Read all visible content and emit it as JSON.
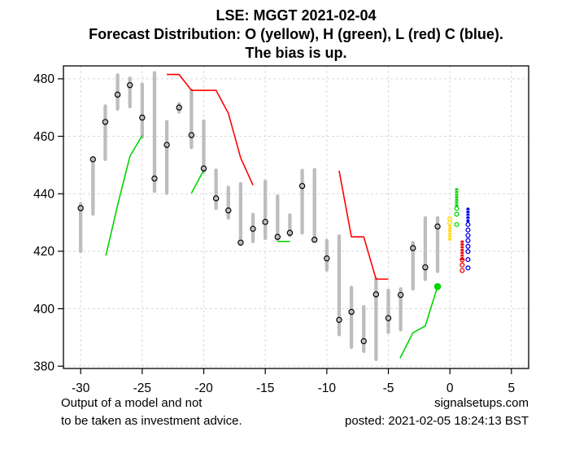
{
  "title": {
    "line1": "LSE: MGGT 2021-02-04",
    "line2": "Forecast Distribution: O (yellow), H (green), L (red) C (blue).",
    "line3": "The bias is up."
  },
  "footer": {
    "disclaimer_line1": "Output of a model and not",
    "disclaimer_line2": "to be taken as investment advice.",
    "site": "signalsetups.com",
    "posted": "posted: 2021-02-05 18:24:13 BST"
  },
  "chart_data": {
    "type": "ohlc-forecast",
    "title": "LSE: MGGT 2021-02-04",
    "xlabel": "",
    "ylabel": "",
    "xlim": [
      -31.4,
      6.4
    ],
    "ylim": [
      379.2,
      484.5
    ],
    "x_ticks": [
      -30,
      -25,
      -20,
      -15,
      -10,
      -5,
      0,
      5
    ],
    "y_ticks": [
      380,
      400,
      420,
      440,
      460,
      480
    ],
    "grid": true,
    "bars_note": "each bar = [day_offset, low, high, close]",
    "bars": [
      [
        -30,
        420.0,
        436.5,
        435.0
      ],
      [
        -29,
        433.0,
        452.5,
        452.0
      ],
      [
        -28,
        452.0,
        470.5,
        465.0
      ],
      [
        -27,
        469.5,
        481.3,
        474.5
      ],
      [
        -26,
        470.3,
        480.2,
        477.8
      ],
      [
        -25,
        459.7,
        478.1,
        466.5
      ],
      [
        -24,
        440.9,
        482.1,
        445.3
      ],
      [
        -23,
        440.2,
        465.1,
        457.0
      ],
      [
        -22,
        468.5,
        471.3,
        470.0
      ],
      [
        -21,
        456.1,
        476.0,
        460.4
      ],
      [
        -20,
        447.6,
        465.3,
        448.8
      ],
      [
        -19,
        434.9,
        448.2,
        438.4
      ],
      [
        -18,
        431.6,
        442.2,
        434.2
      ],
      [
        -17,
        422.5,
        443.5,
        423.0
      ],
      [
        -16,
        423.4,
        432.8,
        427.8
      ],
      [
        -15,
        424.5,
        444.3,
        430.2
      ],
      [
        -14,
        424.1,
        439.2,
        425.0
      ],
      [
        -13,
        425.4,
        432.6,
        426.4
      ],
      [
        -12,
        426.4,
        448.1,
        442.7
      ],
      [
        -11,
        423.6,
        448.4,
        424.0
      ],
      [
        -10,
        413.5,
        423.7,
        417.5
      ],
      [
        -9,
        391.0,
        425.3,
        396.1
      ],
      [
        -8,
        386.6,
        407.4,
        398.9
      ],
      [
        -7,
        385.2,
        400.7,
        388.7
      ],
      [
        -6,
        382.4,
        410.4,
        405.0
      ],
      [
        -5,
        391.8,
        406.4,
        396.7
      ],
      [
        -4,
        392.7,
        406.9,
        404.8
      ],
      [
        -3,
        406.9,
        423.0,
        421.1
      ],
      [
        -2,
        410.2,
        431.6,
        414.4
      ],
      [
        -1,
        413.0,
        431.6,
        428.6
      ]
    ],
    "green_line_segments": [
      [
        [
          -27.95,
          418.5
        ],
        [
          -27,
          436.0
        ],
        [
          -26,
          453.0
        ],
        [
          -25,
          460.3
        ]
      ],
      [
        [
          -21,
          440.2
        ],
        [
          -20,
          448.2
        ]
      ],
      [
        [
          -14,
          423.4
        ],
        [
          -13,
          423.4
        ]
      ],
      [
        [
          -4.05,
          382.8
        ],
        [
          -3,
          391.6
        ],
        [
          -2,
          394.0
        ],
        [
          -1,
          407.7
        ]
      ]
    ],
    "red_line_segments": [
      [
        [
          -23,
          481.5
        ],
        [
          -22,
          481.5
        ],
        [
          -21,
          476.0
        ],
        [
          -19,
          476.0
        ],
        [
          -18,
          468.0
        ],
        [
          -17,
          452.5
        ],
        [
          -16,
          443.0
        ]
      ],
      [
        [
          -9,
          448.0
        ],
        [
          -8,
          425.0
        ],
        [
          -7,
          425.0
        ],
        [
          -6,
          410.3
        ],
        [
          -5,
          410.3
        ]
      ]
    ],
    "green_marker": {
      "x": -1,
      "value": 407.7
    },
    "clusters": [
      {
        "name": "O",
        "color_name": "yellow",
        "hex": "#FFD700",
        "x": 0.0,
        "open_top": [
          431.3,
          429.9
        ],
        "filled": [
          428.8,
          424.2
        ],
        "open_bottom": []
      },
      {
        "name": "H",
        "color_name": "green",
        "hex": "#00D500",
        "x": 0.55,
        "open_top": [],
        "filled": [
          441.4,
          435.9
        ],
        "open_bottom": [
          434.9,
          432.9,
          429.3
        ]
      },
      {
        "name": "L",
        "color_name": "red",
        "hex": "#EE0000",
        "x": 1.0,
        "open_top": [],
        "filled": [
          423.2,
          417.4
        ],
        "open_bottom": [
          417.0,
          415.2,
          413.3
        ]
      },
      {
        "name": "C",
        "color_name": "blue",
        "hex": "#0000F0",
        "x": 1.47,
        "open_top": [],
        "filled": [
          434.6,
          430.6
        ],
        "open_bottom": [
          429.3,
          427.4,
          425.5,
          423.7,
          421.7,
          419.9,
          417.1,
          414.2
        ]
      }
    ],
    "colors": {
      "bar": "#BDBDBD",
      "grid": "#D8D8D8",
      "close_circle": "#000000",
      "green_line": "#00D500",
      "red_line": "#FF0000",
      "axis": "#000000",
      "background": "#FFFFFF"
    },
    "legend_position": "none"
  }
}
